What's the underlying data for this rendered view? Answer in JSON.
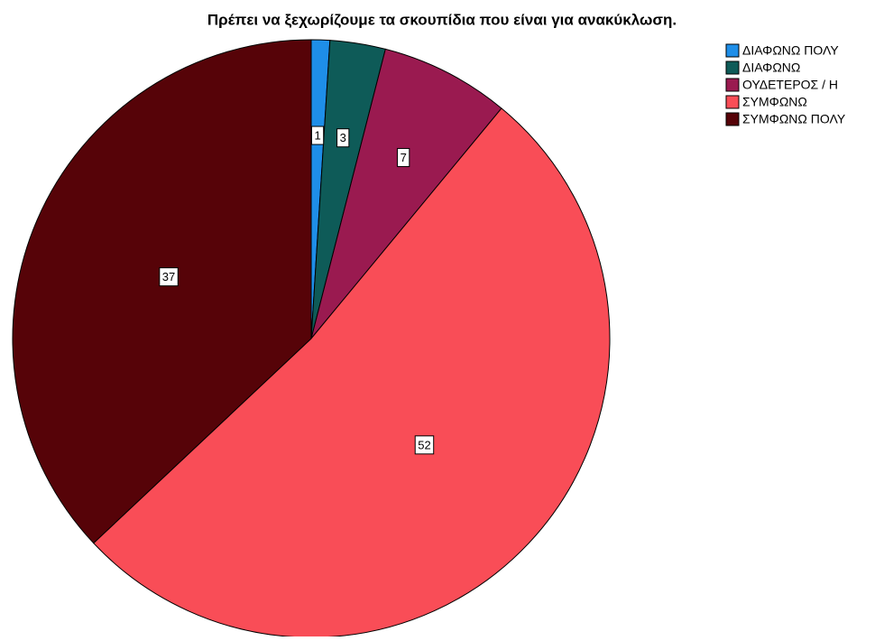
{
  "chart_data": {
    "type": "pie",
    "title": "Πρέπει να ξεχωρίζουμε τα σκουπίδια που είναι για ανακύκλωση.",
    "categories": [
      "ΔΙΑΦΩΝΩ ΠΟΛΥ",
      "ΔΙΑΦΩΝΩ",
      "ΟΥΔΕΤΕΡΟΣ / Η",
      "ΣΥΜΦΩΝΩ",
      "ΣΥΜΦΩΝΩ ΠΟΛΥ"
    ],
    "values": [
      1,
      3,
      7,
      52,
      37
    ],
    "colors": [
      "#1e8ee8",
      "#0e5b58",
      "#9a1a50",
      "#f94d57",
      "#560308"
    ],
    "legend": "top-right"
  }
}
